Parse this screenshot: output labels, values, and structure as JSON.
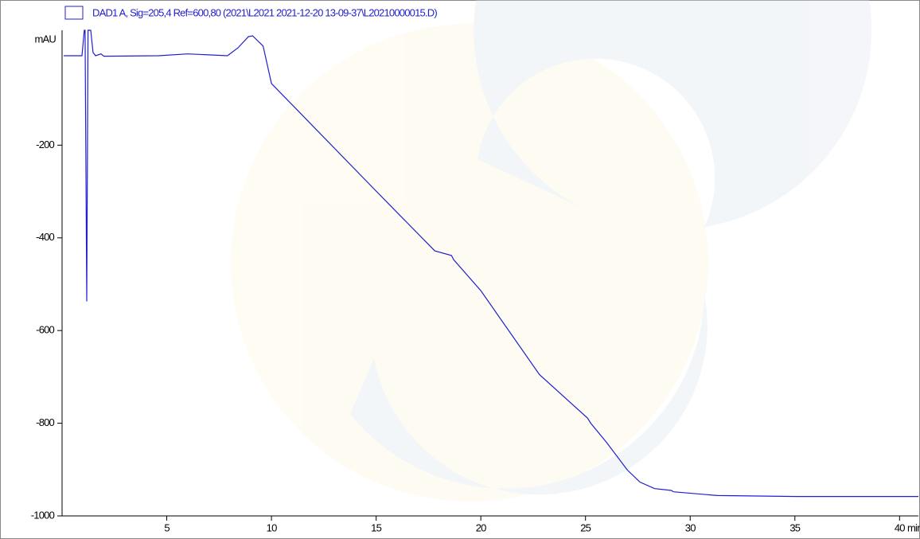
{
  "chart_data": {
    "type": "line",
    "legend_title": null,
    "ylabel": "mAU",
    "xlabel": "min",
    "x": [
      0.08,
      0.95,
      1.06,
      1.1,
      1.18,
      1.24,
      1.37,
      1.48,
      1.6,
      1.86,
      2.0,
      4.6,
      6.0,
      7.9,
      8.4,
      8.9,
      9.1,
      9.6,
      10.0,
      15.0,
      17.8,
      18.6,
      18.7,
      20.0,
      22.8,
      25.1,
      25.25,
      26.0,
      27.0,
      27.6,
      28.3,
      29.1,
      29.2,
      31.3,
      35.1,
      40.9
    ],
    "series": [
      {
        "name": "DAD1 A, Sig=205,4 Ref=600,80 (2021\\L2021 2021-12-20 13-09-37\\L20210000015.D)",
        "color": "#1f1fd0",
        "values": [
          -7,
          -7,
          48,
          48,
          -537,
          48,
          48,
          0,
          -7,
          -3,
          -8,
          -7,
          -3,
          -7,
          10,
          34,
          36,
          14,
          -67,
          -299,
          -428,
          -438,
          -447,
          -514,
          -695,
          -789,
          -800,
          -841,
          -901,
          -927,
          -941,
          -945,
          -948,
          -956,
          -958,
          -958
        ]
      }
    ],
    "xlim": [
      0,
      40.9
    ],
    "ylim": [
      -1000,
      48
    ],
    "xticks": [
      5,
      10,
      15,
      20,
      25,
      30,
      35,
      40
    ],
    "yticks": [
      -1000,
      -800,
      -600,
      -400,
      -200
    ]
  }
}
